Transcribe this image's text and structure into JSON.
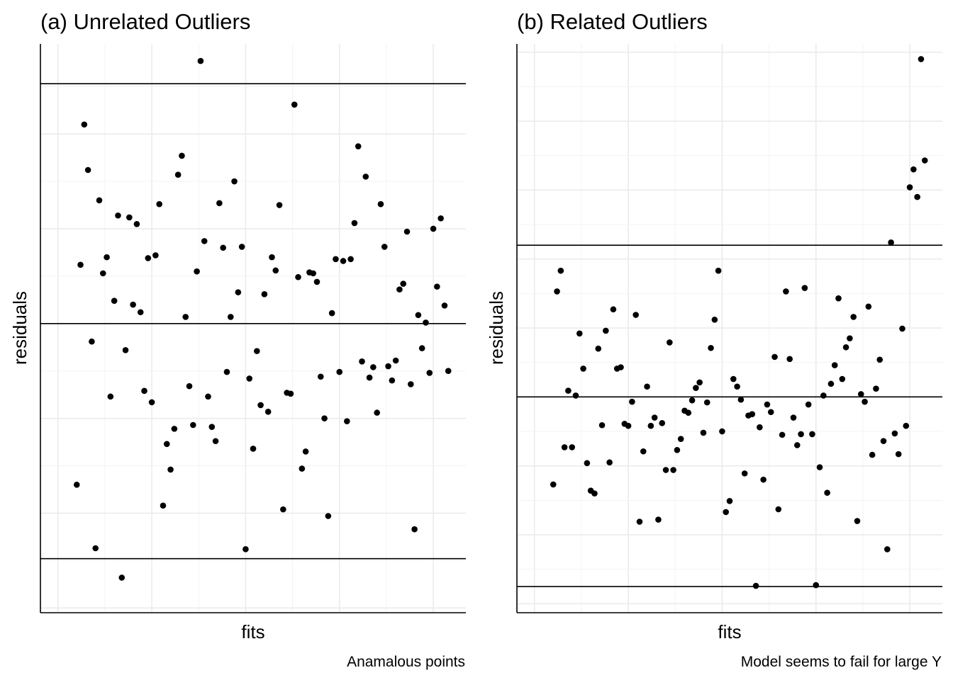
{
  "chart_data": [
    {
      "type": "scatter",
      "title": "(a) Unrelated Outliers",
      "xlabel": "fits",
      "ylabel": "residuals",
      "caption": "Anamalous points",
      "xlim": [
        0,
        104
      ],
      "ylim": [
        -3.05,
        2.95
      ],
      "hlines": [
        -2.48,
        0,
        2.53
      ],
      "grid": true,
      "x_ticks_shown": false,
      "y_ticks_shown": false,
      "points": [
        {
          "x": 5,
          "y": -1.7
        },
        {
          "x": 6,
          "y": 0.62
        },
        {
          "x": 7,
          "y": 2.1
        },
        {
          "x": 8,
          "y": 1.62
        },
        {
          "x": 9,
          "y": -0.19
        },
        {
          "x": 10,
          "y": -2.37
        },
        {
          "x": 11,
          "y": 1.3
        },
        {
          "x": 12,
          "y": 0.53
        },
        {
          "x": 13,
          "y": 0.7
        },
        {
          "x": 14,
          "y": -0.77
        },
        {
          "x": 15,
          "y": 0.24
        },
        {
          "x": 16,
          "y": 1.14
        },
        {
          "x": 17,
          "y": -2.68
        },
        {
          "x": 18,
          "y": -0.28
        },
        {
          "x": 19,
          "y": 1.12
        },
        {
          "x": 20,
          "y": 0.2
        },
        {
          "x": 21,
          "y": 1.05
        },
        {
          "x": 22,
          "y": 0.12
        },
        {
          "x": 23,
          "y": -0.71
        },
        {
          "x": 24,
          "y": 0.69
        },
        {
          "x": 25,
          "y": -0.83
        },
        {
          "x": 26,
          "y": 0.72
        },
        {
          "x": 27,
          "y": 1.26
        },
        {
          "x": 28,
          "y": -1.92
        },
        {
          "x": 29,
          "y": -1.27
        },
        {
          "x": 30,
          "y": -1.54
        },
        {
          "x": 31,
          "y": -1.11
        },
        {
          "x": 32,
          "y": 1.57
        },
        {
          "x": 33,
          "y": 1.77
        },
        {
          "x": 34,
          "y": 0.07
        },
        {
          "x": 35,
          "y": -0.66
        },
        {
          "x": 36,
          "y": -1.07
        },
        {
          "x": 37,
          "y": 0.55
        },
        {
          "x": 38,
          "y": 2.77
        },
        {
          "x": 39,
          "y": 0.87
        },
        {
          "x": 40,
          "y": -0.77
        },
        {
          "x": 41,
          "y": -1.09
        },
        {
          "x": 42,
          "y": -1.24
        },
        {
          "x": 43,
          "y": 1.27
        },
        {
          "x": 44,
          "y": 0.8
        },
        {
          "x": 45,
          "y": -0.51
        },
        {
          "x": 46,
          "y": 0.07
        },
        {
          "x": 47,
          "y": 1.5
        },
        {
          "x": 48,
          "y": 0.33
        },
        {
          "x": 49,
          "y": 0.81
        },
        {
          "x": 50,
          "y": -2.38
        },
        {
          "x": 51,
          "y": -0.58
        },
        {
          "x": 52,
          "y": -1.32
        },
        {
          "x": 53,
          "y": -0.29
        },
        {
          "x": 54,
          "y": -0.86
        },
        {
          "x": 55,
          "y": 0.31
        },
        {
          "x": 56,
          "y": -0.93
        },
        {
          "x": 57,
          "y": 0.7
        },
        {
          "x": 58,
          "y": 0.56
        },
        {
          "x": 59,
          "y": 1.25
        },
        {
          "x": 60,
          "y": -1.96
        },
        {
          "x": 61,
          "y": -0.73
        },
        {
          "x": 62,
          "y": -0.74
        },
        {
          "x": 63,
          "y": 2.31
        },
        {
          "x": 64,
          "y": 0.49
        },
        {
          "x": 65,
          "y": -1.53
        },
        {
          "x": 66,
          "y": -1.35
        },
        {
          "x": 67,
          "y": 0.54
        },
        {
          "x": 68,
          "y": 0.53
        },
        {
          "x": 69,
          "y": 0.44
        },
        {
          "x": 70,
          "y": -0.56
        },
        {
          "x": 71,
          "y": -1.0
        },
        {
          "x": 72,
          "y": -2.03
        },
        {
          "x": 73,
          "y": 0.11
        },
        {
          "x": 74,
          "y": 0.68
        },
        {
          "x": 75,
          "y": -0.51
        },
        {
          "x": 76,
          "y": 0.66
        },
        {
          "x": 77,
          "y": -1.03
        },
        {
          "x": 78,
          "y": 0.68
        },
        {
          "x": 79,
          "y": 1.06
        },
        {
          "x": 80,
          "y": 1.87
        },
        {
          "x": 81,
          "y": -0.4
        },
        {
          "x": 82,
          "y": 1.55
        },
        {
          "x": 83,
          "y": -0.57
        },
        {
          "x": 84,
          "y": -0.46
        },
        {
          "x": 85,
          "y": -0.94
        },
        {
          "x": 86,
          "y": 1.26
        },
        {
          "x": 87,
          "y": 0.81
        },
        {
          "x": 88,
          "y": -0.45
        },
        {
          "x": 89,
          "y": -0.6
        },
        {
          "x": 90,
          "y": -0.39
        },
        {
          "x": 91,
          "y": 0.36
        },
        {
          "x": 92,
          "y": 0.42
        },
        {
          "x": 93,
          "y": 0.97
        },
        {
          "x": 94,
          "y": -0.64
        },
        {
          "x": 95,
          "y": -2.17
        },
        {
          "x": 96,
          "y": 0.09
        },
        {
          "x": 97,
          "y": -0.26
        },
        {
          "x": 98,
          "y": 0.01
        },
        {
          "x": 99,
          "y": -0.52
        },
        {
          "x": 100,
          "y": 1.0
        },
        {
          "x": 101,
          "y": 0.39
        },
        {
          "x": 102,
          "y": 1.11
        },
        {
          "x": 103,
          "y": 0.19
        },
        {
          "x": 104,
          "y": -0.5
        }
      ]
    },
    {
      "type": "scatter",
      "title": "(b) Related Outliers",
      "xlabel": "fits",
      "ylabel": "residuals",
      "caption": "Model seems to fail for large Y",
      "xlim": [
        0,
        104
      ],
      "ylim": [
        -3.13,
        5.12
      ],
      "hlines": [
        -2.75,
        0,
        2.2
      ],
      "grid": true,
      "x_ticks_shown": false,
      "y_ticks_shown": false,
      "points": [
        {
          "x": 5,
          "y": -1.27
        },
        {
          "x": 6,
          "y": 1.53
        },
        {
          "x": 7,
          "y": 1.83
        },
        {
          "x": 8,
          "y": -0.73
        },
        {
          "x": 9,
          "y": 0.09
        },
        {
          "x": 10,
          "y": -0.73
        },
        {
          "x": 11,
          "y": 0.02
        },
        {
          "x": 12,
          "y": 0.92
        },
        {
          "x": 13,
          "y": 0.41
        },
        {
          "x": 14,
          "y": -0.96
        },
        {
          "x": 15,
          "y": -1.36
        },
        {
          "x": 16,
          "y": -1.4
        },
        {
          "x": 17,
          "y": 0.7
        },
        {
          "x": 18,
          "y": -0.41
        },
        {
          "x": 19,
          "y": 0.96
        },
        {
          "x": 20,
          "y": -0.95
        },
        {
          "x": 21,
          "y": 1.27
        },
        {
          "x": 22,
          "y": 0.41
        },
        {
          "x": 23,
          "y": 0.43
        },
        {
          "x": 24,
          "y": -0.39
        },
        {
          "x": 25,
          "y": -0.42
        },
        {
          "x": 26,
          "y": -0.07
        },
        {
          "x": 27,
          "y": 1.19
        },
        {
          "x": 28,
          "y": -1.81
        },
        {
          "x": 29,
          "y": -0.79
        },
        {
          "x": 30,
          "y": 0.15
        },
        {
          "x": 31,
          "y": -0.42
        },
        {
          "x": 32,
          "y": -0.3
        },
        {
          "x": 33,
          "y": -1.78
        },
        {
          "x": 34,
          "y": -0.38
        },
        {
          "x": 35,
          "y": -1.06
        },
        {
          "x": 36,
          "y": 0.79
        },
        {
          "x": 37,
          "y": -1.06
        },
        {
          "x": 38,
          "y": -0.77
        },
        {
          "x": 39,
          "y": -0.61
        },
        {
          "x": 40,
          "y": -0.2
        },
        {
          "x": 41,
          "y": -0.23
        },
        {
          "x": 42,
          "y": -0.05
        },
        {
          "x": 43,
          "y": 0.13
        },
        {
          "x": 44,
          "y": 0.21
        },
        {
          "x": 45,
          "y": -0.52
        },
        {
          "x": 46,
          "y": -0.08
        },
        {
          "x": 47,
          "y": 0.71
        },
        {
          "x": 48,
          "y": 1.12
        },
        {
          "x": 49,
          "y": 1.83
        },
        {
          "x": 50,
          "y": -0.5
        },
        {
          "x": 51,
          "y": -1.67
        },
        {
          "x": 52,
          "y": -1.51
        },
        {
          "x": 53,
          "y": 0.26
        },
        {
          "x": 54,
          "y": 0.15
        },
        {
          "x": 55,
          "y": -0.04
        },
        {
          "x": 56,
          "y": -1.11
        },
        {
          "x": 57,
          "y": -0.27
        },
        {
          "x": 58,
          "y": -0.25
        },
        {
          "x": 59,
          "y": -2.74
        },
        {
          "x": 60,
          "y": -0.44
        },
        {
          "x": 61,
          "y": -1.2
        },
        {
          "x": 62,
          "y": -0.11
        },
        {
          "x": 63,
          "y": -0.22
        },
        {
          "x": 64,
          "y": 0.58
        },
        {
          "x": 65,
          "y": -1.63
        },
        {
          "x": 66,
          "y": -0.55
        },
        {
          "x": 67,
          "y": 1.53
        },
        {
          "x": 68,
          "y": 0.55
        },
        {
          "x": 69,
          "y": -0.3
        },
        {
          "x": 70,
          "y": -0.7
        },
        {
          "x": 71,
          "y": -0.54
        },
        {
          "x": 72,
          "y": 1.58
        },
        {
          "x": 73,
          "y": -0.11
        },
        {
          "x": 74,
          "y": -0.54
        },
        {
          "x": 75,
          "y": -2.73
        },
        {
          "x": 76,
          "y": -1.02
        },
        {
          "x": 77,
          "y": 0.02
        },
        {
          "x": 78,
          "y": -1.39
        },
        {
          "x": 79,
          "y": 0.19
        },
        {
          "x": 80,
          "y": 0.46
        },
        {
          "x": 81,
          "y": 1.43
        },
        {
          "x": 82,
          "y": 0.26
        },
        {
          "x": 83,
          "y": 0.72
        },
        {
          "x": 84,
          "y": 0.85
        },
        {
          "x": 85,
          "y": 1.16
        },
        {
          "x": 86,
          "y": -1.8
        },
        {
          "x": 87,
          "y": 0.04
        },
        {
          "x": 88,
          "y": -0.07
        },
        {
          "x": 89,
          "y": 1.31
        },
        {
          "x": 90,
          "y": -0.84
        },
        {
          "x": 91,
          "y": 0.12
        },
        {
          "x": 92,
          "y": 0.54
        },
        {
          "x": 93,
          "y": -0.64
        },
        {
          "x": 94,
          "y": -2.21
        },
        {
          "x": 95,
          "y": 2.24
        },
        {
          "x": 96,
          "y": -0.53
        },
        {
          "x": 97,
          "y": -0.83
        },
        {
          "x": 98,
          "y": 0.99
        },
        {
          "x": 99,
          "y": -0.42
        },
        {
          "x": 100,
          "y": 3.04
        },
        {
          "x": 101,
          "y": 3.3
        },
        {
          "x": 102,
          "y": 2.9
        },
        {
          "x": 103,
          "y": 4.9
        },
        {
          "x": 104,
          "y": 3.43
        }
      ]
    }
  ]
}
